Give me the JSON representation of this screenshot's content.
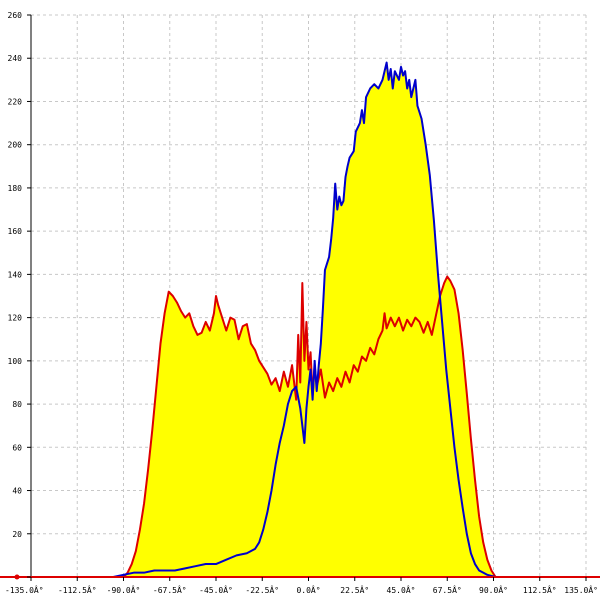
{
  "chart_data": {
    "type": "area",
    "xlim": [
      -135,
      135
    ],
    "ylim": [
      0,
      260
    ],
    "grid": true,
    "x_ticks": [
      -135,
      -112.5,
      -90,
      -67.5,
      -45,
      -22.5,
      0,
      22.5,
      45,
      67.5,
      90,
      112.5,
      135
    ],
    "x_tick_labels": [
      "-135.0Â°",
      "-112.5Â°",
      "-90.0Â°",
      "-67.5Â°",
      "-45.0Â°",
      "-22.5Â°",
      "0.0Â°",
      "22.5Â°",
      "45.0Â°",
      "67.5Â°",
      "90.0Â°",
      "112.5Â°",
      "135.0Â°"
    ],
    "y_ticks": [
      0,
      20,
      40,
      60,
      80,
      100,
      120,
      140,
      160,
      180,
      200,
      220,
      240,
      260
    ],
    "y_tick_labels": [
      "0",
      "20",
      "40",
      "60",
      "80",
      "100",
      "120",
      "140",
      "160",
      "180",
      "200",
      "220",
      "240",
      "260"
    ],
    "fill_color": "#ffff00",
    "series": [
      {
        "color": "#dd0000",
        "points": [
          [
            -90,
            0
          ],
          [
            -88,
            2
          ],
          [
            -86,
            6
          ],
          [
            -84,
            12
          ],
          [
            -82,
            22
          ],
          [
            -80,
            34
          ],
          [
            -78,
            50
          ],
          [
            -76,
            68
          ],
          [
            -74,
            88
          ],
          [
            -72,
            108
          ],
          [
            -70,
            122
          ],
          [
            -68,
            132
          ],
          [
            -66,
            130
          ],
          [
            -64,
            127
          ],
          [
            -62,
            123
          ],
          [
            -60,
            120
          ],
          [
            -58,
            122
          ],
          [
            -56,
            116
          ],
          [
            -54,
            112
          ],
          [
            -52,
            113
          ],
          [
            -50,
            118
          ],
          [
            -48,
            114
          ],
          [
            -46,
            122
          ],
          [
            -45,
            130
          ],
          [
            -44,
            126
          ],
          [
            -42,
            120
          ],
          [
            -40,
            114
          ],
          [
            -38,
            120
          ],
          [
            -36,
            119
          ],
          [
            -34,
            110
          ],
          [
            -32,
            116
          ],
          [
            -30,
            117
          ],
          [
            -28,
            108
          ],
          [
            -26,
            105
          ],
          [
            -24,
            100
          ],
          [
            -22,
            97
          ],
          [
            -20,
            94
          ],
          [
            -18,
            89
          ],
          [
            -16,
            92
          ],
          [
            -14,
            86
          ],
          [
            -12,
            95
          ],
          [
            -10,
            88
          ],
          [
            -8,
            98
          ],
          [
            -6,
            82
          ],
          [
            -5,
            112
          ],
          [
            -4,
            90
          ],
          [
            -3,
            136
          ],
          [
            -2,
            100
          ],
          [
            -1,
            118
          ],
          [
            0,
            96
          ],
          [
            1,
            104
          ],
          [
            2,
            84
          ],
          [
            3,
            98
          ],
          [
            4,
            88
          ],
          [
            6,
            96
          ],
          [
            8,
            83
          ],
          [
            10,
            90
          ],
          [
            12,
            86
          ],
          [
            14,
            92
          ],
          [
            16,
            88
          ],
          [
            18,
            95
          ],
          [
            20,
            90
          ],
          [
            22,
            98
          ],
          [
            24,
            95
          ],
          [
            26,
            102
          ],
          [
            28,
            100
          ],
          [
            30,
            106
          ],
          [
            32,
            103
          ],
          [
            34,
            110
          ],
          [
            36,
            114
          ],
          [
            37,
            122
          ],
          [
            38,
            115
          ],
          [
            40,
            120
          ],
          [
            42,
            116
          ],
          [
            44,
            120
          ],
          [
            46,
            114
          ],
          [
            48,
            119
          ],
          [
            50,
            116
          ],
          [
            52,
            120
          ],
          [
            54,
            118
          ],
          [
            56,
            113
          ],
          [
            58,
            118
          ],
          [
            60,
            112
          ],
          [
            62,
            121
          ],
          [
            64,
            130
          ],
          [
            66,
            136
          ],
          [
            67.5,
            139
          ],
          [
            69,
            137
          ],
          [
            71,
            133
          ],
          [
            73,
            122
          ],
          [
            75,
            105
          ],
          [
            77,
            85
          ],
          [
            79,
            64
          ],
          [
            81,
            45
          ],
          [
            83,
            28
          ],
          [
            85,
            16
          ],
          [
            87,
            8
          ],
          [
            89,
            3
          ],
          [
            91,
            0
          ]
        ]
      },
      {
        "color": "#0000cc",
        "points": [
          [
            -95,
            0
          ],
          [
            -90,
            1
          ],
          [
            -85,
            2
          ],
          [
            -80,
            2
          ],
          [
            -75,
            3
          ],
          [
            -70,
            3
          ],
          [
            -65,
            3
          ],
          [
            -60,
            4
          ],
          [
            -55,
            5
          ],
          [
            -50,
            6
          ],
          [
            -45,
            6
          ],
          [
            -40,
            8
          ],
          [
            -35,
            10
          ],
          [
            -30,
            11
          ],
          [
            -26,
            13
          ],
          [
            -24,
            16
          ],
          [
            -22,
            22
          ],
          [
            -20,
            30
          ],
          [
            -18,
            40
          ],
          [
            -16,
            52
          ],
          [
            -14,
            62
          ],
          [
            -12,
            70
          ],
          [
            -10,
            80
          ],
          [
            -8,
            86
          ],
          [
            -6,
            88
          ],
          [
            -4,
            78
          ],
          [
            -3,
            70
          ],
          [
            -2,
            62
          ],
          [
            -1,
            78
          ],
          [
            0,
            88
          ],
          [
            1,
            96
          ],
          [
            2,
            82
          ],
          [
            3,
            100
          ],
          [
            4,
            86
          ],
          [
            5,
            98
          ],
          [
            6,
            108
          ],
          [
            7,
            124
          ],
          [
            8,
            142
          ],
          [
            9,
            145
          ],
          [
            10,
            148
          ],
          [
            11,
            156
          ],
          [
            12,
            166
          ],
          [
            13,
            182
          ],
          [
            14,
            170
          ],
          [
            15,
            176
          ],
          [
            16,
            172
          ],
          [
            17,
            174
          ],
          [
            18,
            185
          ],
          [
            19,
            190
          ],
          [
            20,
            194
          ],
          [
            22,
            197
          ],
          [
            23,
            206
          ],
          [
            25,
            210
          ],
          [
            26,
            216
          ],
          [
            27,
            210
          ],
          [
            28,
            222
          ],
          [
            30,
            226
          ],
          [
            32,
            228
          ],
          [
            34,
            226
          ],
          [
            36,
            230
          ],
          [
            38,
            238
          ],
          [
            39,
            230
          ],
          [
            40,
            235
          ],
          [
            41,
            226
          ],
          [
            42,
            234
          ],
          [
            44,
            230
          ],
          [
            45,
            236
          ],
          [
            46,
            232
          ],
          [
            47,
            234
          ],
          [
            48,
            226
          ],
          [
            49,
            230
          ],
          [
            50,
            222
          ],
          [
            52,
            230
          ],
          [
            53,
            218
          ],
          [
            55,
            212
          ],
          [
            57,
            200
          ],
          [
            59,
            186
          ],
          [
            61,
            165
          ],
          [
            63,
            140
          ],
          [
            65,
            118
          ],
          [
            67,
            96
          ],
          [
            69,
            78
          ],
          [
            71,
            60
          ],
          [
            73,
            45
          ],
          [
            75,
            32
          ],
          [
            77,
            20
          ],
          [
            79,
            11
          ],
          [
            81,
            6
          ],
          [
            83,
            3
          ],
          [
            85,
            2
          ],
          [
            87,
            1
          ],
          [
            91,
            0
          ]
        ]
      }
    ]
  }
}
